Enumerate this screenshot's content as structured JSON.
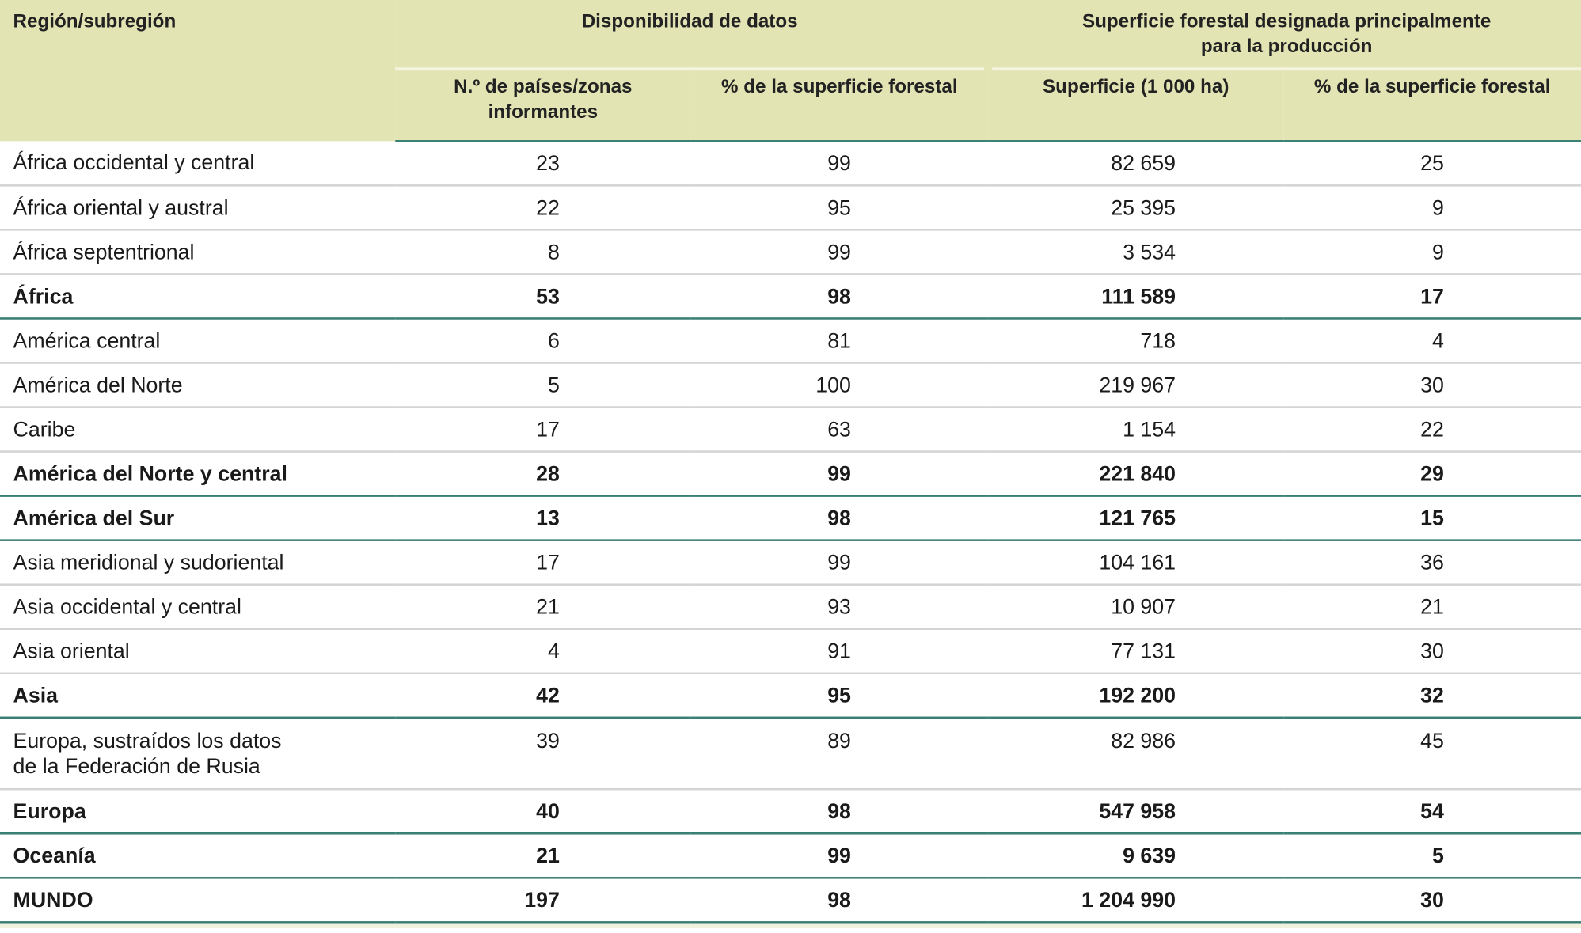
{
  "header": {
    "region": "Región/subregión",
    "group1": "Disponibilidad de datos",
    "group2_line1": "Superficie forestal designada principalmente",
    "group2_line2": "para la producción",
    "col1_line1": "N.º de países/zonas",
    "col1_line2": "informantes",
    "col2": "% de la superficie forestal",
    "col3": "Superficie (1 000 ha)",
    "col4": "% de la superficie forestal"
  },
  "rows": [
    {
      "name": "África occidental y central",
      "n": "23",
      "pct": "99",
      "area": "82 659",
      "pct_area": "25",
      "total": false
    },
    {
      "name": "África oriental y austral",
      "n": "22",
      "pct": "95",
      "area": "25 395",
      "pct_area": "9",
      "total": false
    },
    {
      "name": "África septentrional",
      "n": "8",
      "pct": "99",
      "area": "3 534",
      "pct_area": "9",
      "total": false
    },
    {
      "name": "África",
      "n": "53",
      "pct": "98",
      "area": "111 589",
      "pct_area": "17",
      "total": true
    },
    {
      "name": "América central",
      "n": "6",
      "pct": "81",
      "area": "718",
      "pct_area": "4",
      "total": false
    },
    {
      "name": "América del Norte",
      "n": "5",
      "pct": "100",
      "area": "219 967",
      "pct_area": "30",
      "total": false
    },
    {
      "name": "Caribe",
      "n": "17",
      "pct": "63",
      "area": "1 154",
      "pct_area": "22",
      "total": false
    },
    {
      "name": "América del Norte y central",
      "n": "28",
      "pct": "99",
      "area": "221 840",
      "pct_area": "29",
      "total": true
    },
    {
      "name": "América del Sur",
      "n": "13",
      "pct": "98",
      "area": "121 765",
      "pct_area": "15",
      "total": true
    },
    {
      "name": "Asia meridional y sudoriental",
      "n": "17",
      "pct": "99",
      "area": "104 161",
      "pct_area": "36",
      "total": false
    },
    {
      "name": "Asia occidental y central",
      "n": "21",
      "pct": "93",
      "area": "10 907",
      "pct_area": "21",
      "total": false
    },
    {
      "name": "Asia oriental",
      "n": "4",
      "pct": "91",
      "area": "77 131",
      "pct_area": "30",
      "total": false
    },
    {
      "name": "Asia",
      "n": "42",
      "pct": "95",
      "area": "192 200",
      "pct_area": "32",
      "total": true
    },
    {
      "name": "Europa, sustraídos los datos",
      "name2": "de la Federación de Rusia",
      "n": "39",
      "pct": "89",
      "area": "82 986",
      "pct_area": "45",
      "total": false
    },
    {
      "name": "Europa",
      "n": "40",
      "pct": "98",
      "area": "547 958",
      "pct_area": "54",
      "total": true
    },
    {
      "name": "Oceanía",
      "n": "21",
      "pct": "99",
      "area": "9 639",
      "pct_area": "5",
      "total": true
    },
    {
      "name": "MUNDO",
      "n": "197",
      "pct": "98",
      "area": "1 204 990",
      "pct_area": "30",
      "total": true
    }
  ],
  "colors": {
    "header_bg": "#e3e4b4",
    "rule_teal": "#3a7f74",
    "rule_gray": "#d4d4d4"
  }
}
